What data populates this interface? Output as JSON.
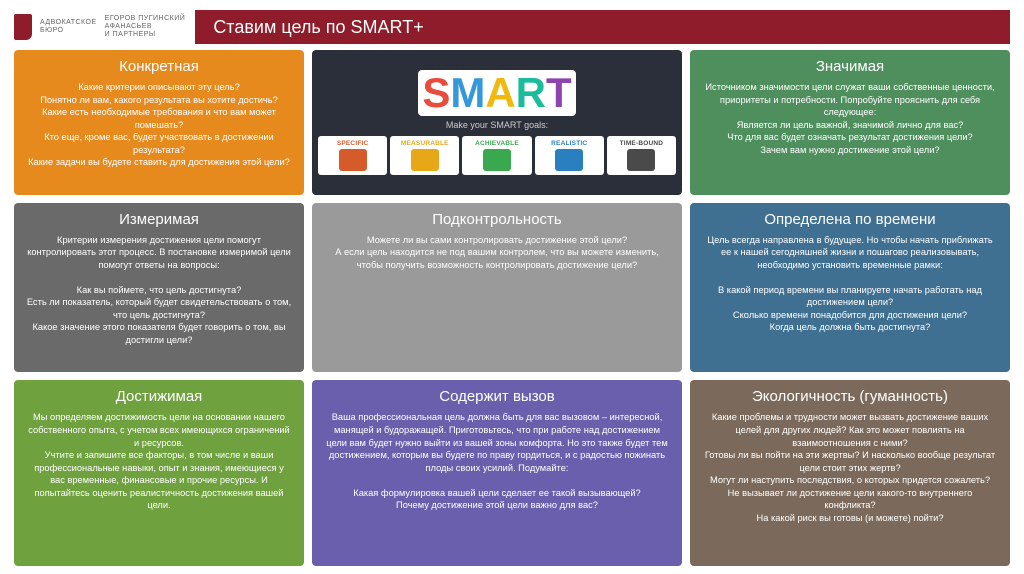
{
  "logo": {
    "line1": "АДВОКАТСКОЕ",
    "line2": "БЮРО",
    "line3": "ЕГОРОВ ПУГИНСКИЙ",
    "line4": "АФАНАСЬЕВ",
    "line5": "И ПАРТНЕРЫ"
  },
  "title": "Ставим цель по SMART+",
  "colors": {
    "brand": "#8e1c2b",
    "specific": "#e78a1e",
    "measurable": "#6a6a6a",
    "achievable": "#6fa13e",
    "control": "#9a9a9a",
    "challenge": "#6a5fad",
    "meaningful": "#4f8f5e",
    "timebound": "#3f6f91",
    "ecology": "#7b6a5b",
    "smart_bg": "#2a2f3a",
    "smart_s": "#e74c3c",
    "smart_m": "#3498db",
    "smart_a": "#f1b90c",
    "smart_r": "#1abc9c",
    "smart_t": "#8e44ad",
    "lbl_s": "#d65b2a",
    "lbl_m": "#e6a817",
    "lbl_a": "#3aa84f",
    "lbl_r": "#2a7fbf",
    "lbl_t": "#4a4a4a"
  },
  "smart": {
    "subtitle": "Make your SMART goals:",
    "letters": [
      "S",
      "M",
      "A",
      "R",
      "T"
    ],
    "labels": [
      "SPECIFIC",
      "MEASURABLE",
      "ACHIEVABLE",
      "REALISTIC",
      "TIME-BOUND"
    ]
  },
  "cards": {
    "specific": {
      "title": "Конкретная",
      "body": "Какие критерии описывают эту цель?\nПонятно ли вам, какого результата вы хотите достичь?\nКакие есть необходимые требования и что вам может помешать?\nКто еще, кроме вас, будет участвовать в достижении результата?\nКакие задачи вы будете ставить для достижения этой цели?"
    },
    "measurable": {
      "title": "Измеримая",
      "body": "Критерии измерения достижения цели помогут контролировать этот процесс. В постановке измеримой цели помогут ответы на вопросы:\n\nКак вы поймете, что цель достигнута?\nЕсть ли показатель, который будет свидетельствовать о том, что цель достигнута?\nКакое значение этого показателя будет говорить о том, вы достигли цели?"
    },
    "achievable": {
      "title": "Достижимая",
      "body": "Мы определяем достижимость цели на основании нашего собственного опыта, с учетом всех имеющихся ограничений и ресурсов.\nУчтите и запишите все факторы, в том числе и ваши профессиональные навыки, опыт и знания, имеющиеся у вас временные, финансовые и прочие ресурсы. И попытайтесь оценить реалистичность достижения вашей цели."
    },
    "control": {
      "title": "Подконтрольность",
      "body": "Можете ли вы сами контролировать достижение этой цели?\nА если цель находится не под вашим контролем, что вы можете изменить, чтобы получить возможность контролировать достижение цели?"
    },
    "challenge": {
      "title": "Содержит вызов",
      "body": "Ваша профессиональная цель должна быть для вас вызовом – интересной, манящей и будоражащей. Приготовьтесь, что при работе над достижением цели вам будет нужно выйти из вашей зоны комфорта. Но это также будет тем достижением, которым вы будете по праву гордиться, и с радостью пожинать плоды своих усилий. Подумайте:\n\nКакая формулировка вашей цели сделает ее такой вызывающей?\nПочему достижение этой цели важно для вас?"
    },
    "meaningful": {
      "title": "Значимая",
      "body": "Источником значимости цели служат ваши собственные ценности, приоритеты и потребности. Попробуйте прояснить для себя следующее:\nЯвляется ли цель важной, значимой лично для вас?\nЧто для вас будет означать результат достижения цели?\nЗачем вам нужно достижение этой цели?"
    },
    "timebound": {
      "title": "Определена по времени",
      "body": "Цель всегда направлена в будущее. Но чтобы начать приближать ее к нашей сегодняшней жизни и пошагово реализовывать, необходимо установить временные рамки:\n\nВ какой период времени вы планируете начать работать над достижением цели?\nСколько времени понадобится для достижения цели?\nКогда цель должна быть достигнута?"
    },
    "ecology": {
      "title": "Экологичность (гуманность)",
      "body": "Какие проблемы и трудности может вызвать достижение ваших целей для других людей? Как это может повлиять на взаимоотношения с ними?\nГотовы ли вы пойти на эти жертвы? И насколько вообще результат цели стоит этих жертв?\nМогут ли наступить последствия, о которых придется сожалеть?\nНе вызывает ли достижение цели какого-то внутреннего конфликта?\nНа какой риск вы готовы (и можете) пойти?"
    }
  }
}
